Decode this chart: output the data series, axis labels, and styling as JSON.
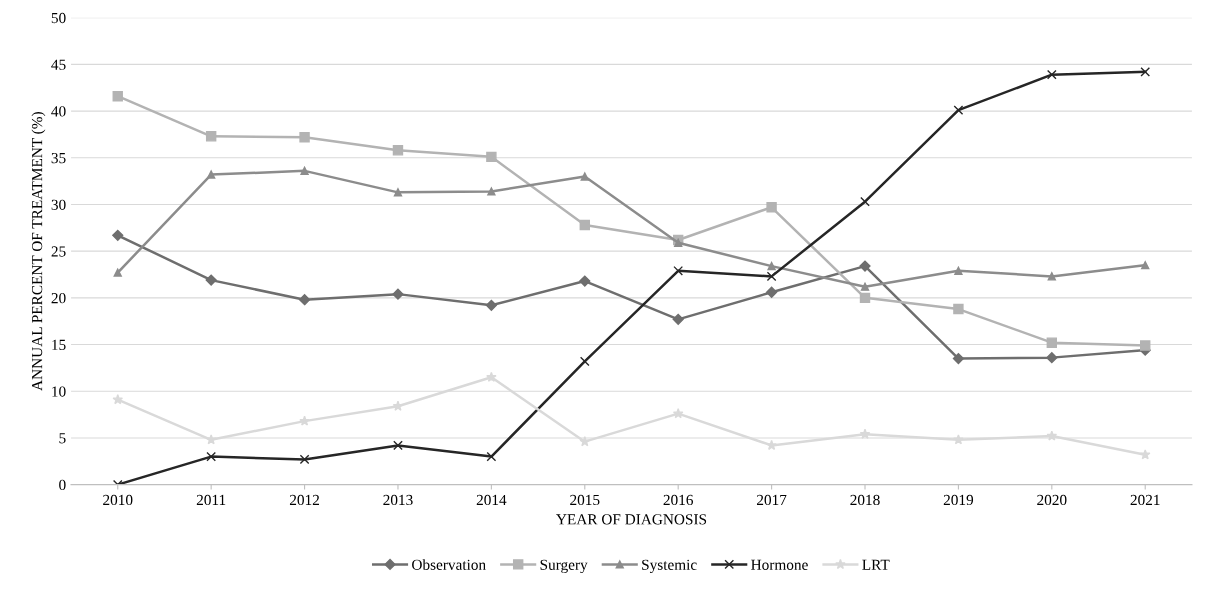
{
  "chart_data": {
    "type": "line",
    "xlabel": "YEAR OF DIAGNOSIS",
    "ylabel": "ANNUAL PERCENT OF TREATMENT (%)",
    "categories": [
      "2010",
      "2011",
      "2012",
      "2013",
      "2014",
      "2015",
      "2016",
      "2017",
      "2018",
      "2019",
      "2020",
      "2021"
    ],
    "ylim": [
      0,
      50
    ],
    "yticks": [
      0,
      5,
      10,
      15,
      20,
      25,
      30,
      35,
      40,
      45,
      50
    ],
    "grid": "y",
    "legend": "bottom",
    "series": [
      {
        "name": "Observation",
        "color": "#6e6e6e",
        "marker": "diamond",
        "values": [
          26.7,
          21.9,
          19.8,
          20.4,
          19.2,
          21.8,
          17.7,
          20.6,
          23.4,
          13.5,
          13.6,
          14.4
        ]
      },
      {
        "name": "Surgery",
        "color": "#b3b3b3",
        "marker": "square",
        "values": [
          41.6,
          37.3,
          37.2,
          35.8,
          35.1,
          27.8,
          26.2,
          29.7,
          20.0,
          18.8,
          15.2,
          14.9
        ]
      },
      {
        "name": "Systemic",
        "color": "#8c8c8c",
        "marker": "triangle",
        "values": [
          22.7,
          33.2,
          33.6,
          31.3,
          31.4,
          33.0,
          25.9,
          23.4,
          21.2,
          22.9,
          22.3,
          23.5
        ]
      },
      {
        "name": "Hormone",
        "color": "#262626",
        "marker": "cross",
        "values": [
          0,
          3.0,
          2.7,
          4.2,
          3.0,
          13.2,
          22.9,
          22.3,
          30.3,
          40.1,
          43.9,
          44.2
        ]
      },
      {
        "name": "LRT",
        "color": "#d9d9d9",
        "marker": "star",
        "values": [
          9.1,
          4.8,
          6.8,
          8.4,
          11.5,
          4.6,
          7.6,
          4.2,
          5.4,
          4.8,
          5.2,
          3.2
        ]
      }
    ]
  }
}
